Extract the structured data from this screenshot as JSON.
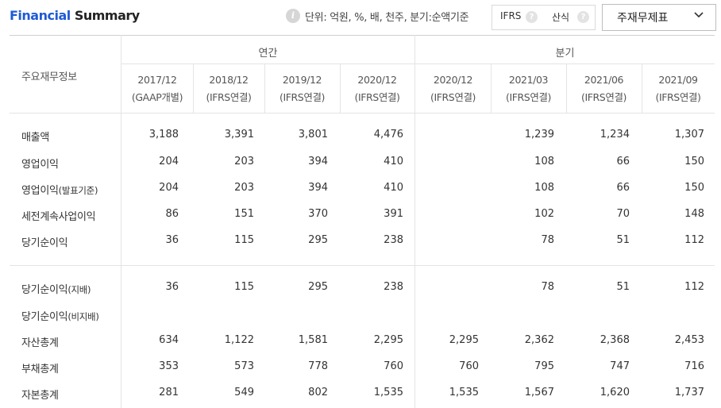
{
  "header": {
    "title_prefix": "Financial",
    "title_suffix": "Summary",
    "unit_text": "단위: 억원, %, 배, 천주, 분기:순액기준",
    "toggle_ifrs": "IFRS",
    "toggle_sansik": "산식",
    "help_glyph": "?",
    "info_glyph": "i",
    "dropdown_label": "주재무제표"
  },
  "table": {
    "corner_label": "주요재무정보",
    "group_annual": "연간",
    "group_quarter": "분기",
    "columns": [
      {
        "date": "2017/12",
        "basis": "(GAAP개별)"
      },
      {
        "date": "2018/12",
        "basis": "(IFRS연결)"
      },
      {
        "date": "2019/12",
        "basis": "(IFRS연결)"
      },
      {
        "date": "2020/12",
        "basis": "(IFRS연결)"
      },
      {
        "date": "2020/12",
        "basis": "(IFRS연결)"
      },
      {
        "date": "2021/03",
        "basis": "(IFRS연결)"
      },
      {
        "date": "2021/06",
        "basis": "(IFRS연결)"
      },
      {
        "date": "2021/09",
        "basis": "(IFRS연결)"
      }
    ],
    "rows": [
      {
        "label": "매출액",
        "sub": "",
        "values": [
          "3,188",
          "3,391",
          "3,801",
          "4,476",
          "",
          "1,239",
          "1,234",
          "1,307"
        ]
      },
      {
        "label": "영업이익",
        "sub": "",
        "values": [
          "204",
          "203",
          "394",
          "410",
          "",
          "108",
          "66",
          "150"
        ]
      },
      {
        "label": "영업이익",
        "sub": "(발표기준)",
        "values": [
          "204",
          "203",
          "394",
          "410",
          "",
          "108",
          "66",
          "150"
        ]
      },
      {
        "label": "세전계속사업이익",
        "sub": "",
        "values": [
          "86",
          "151",
          "370",
          "391",
          "",
          "102",
          "70",
          "148"
        ]
      },
      {
        "label": "당기순이익",
        "sub": "",
        "values": [
          "36",
          "115",
          "295",
          "238",
          "",
          "78",
          "51",
          "112"
        ]
      },
      {
        "label": "당기순이익",
        "sub": "(지배)",
        "values": [
          "36",
          "115",
          "295",
          "238",
          "",
          "78",
          "51",
          "112"
        ]
      },
      {
        "label": "당기순이익",
        "sub": "(비지배)",
        "values": [
          "",
          "",
          "",
          "",
          "",
          "",
          "",
          ""
        ]
      },
      {
        "label": "자산총계",
        "sub": "",
        "values": [
          "634",
          "1,122",
          "1,581",
          "2,295",
          "2,295",
          "2,362",
          "2,368",
          "2,453"
        ]
      },
      {
        "label": "부채총계",
        "sub": "",
        "values": [
          "353",
          "573",
          "778",
          "760",
          "760",
          "795",
          "747",
          "716"
        ]
      },
      {
        "label": "자본총계",
        "sub": "",
        "values": [
          "281",
          "549",
          "802",
          "1,535",
          "1,535",
          "1,567",
          "1,620",
          "1,737"
        ]
      }
    ]
  }
}
